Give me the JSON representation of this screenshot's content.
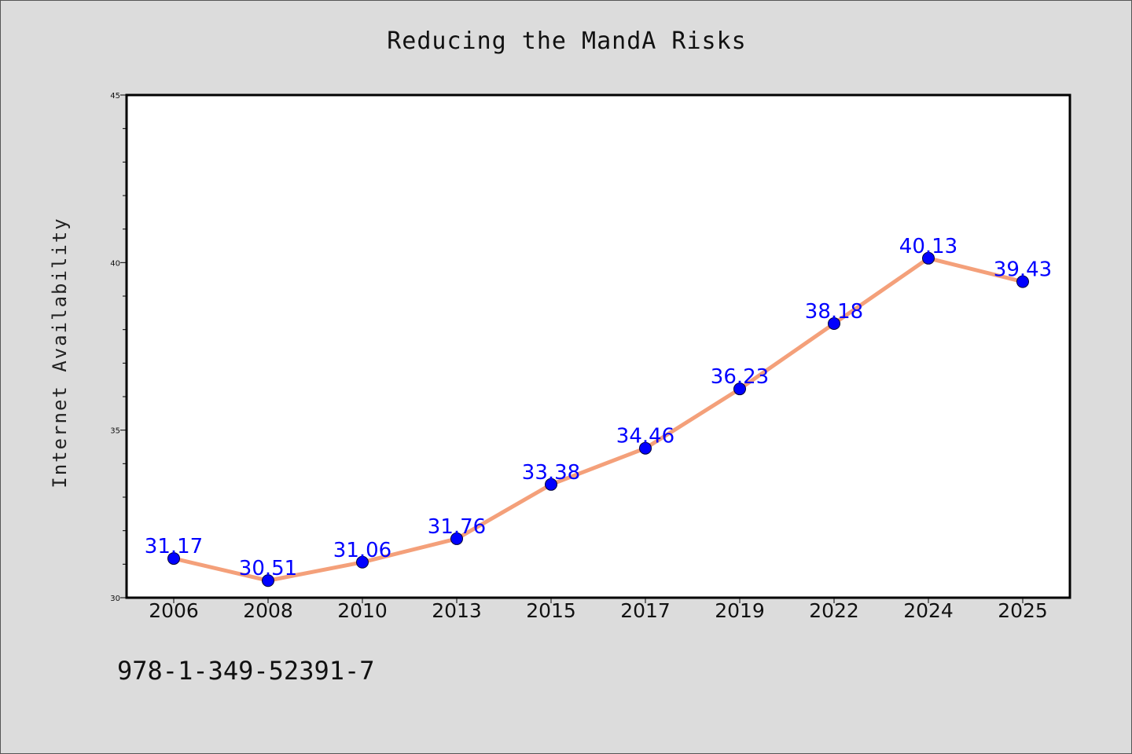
{
  "title": "Reducing the MandA Risks",
  "footnote": "978-1-349-52391-7",
  "chart_data": {
    "type": "line",
    "title": "Reducing the MandA Risks",
    "xlabel": "",
    "ylabel": "Internet Availability",
    "categories": [
      "2006",
      "2008",
      "2010",
      "2013",
      "2015",
      "2017",
      "2019",
      "2022",
      "2024",
      "2025"
    ],
    "series": [
      {
        "values": [
          31.17,
          30.51,
          31.06,
          31.76,
          33.38,
          34.46,
          36.23,
          38.18,
          40.13,
          39.43
        ]
      }
    ],
    "data_labels": [
      "31.17",
      "30.51",
      "31.06",
      "31.76",
      "33.38",
      "34.46",
      "36.23",
      "38.18",
      "40.13",
      "39.43"
    ],
    "ylim": [
      30,
      45
    ],
    "y_ticks": [
      "30",
      "35",
      "40",
      "45"
    ],
    "grid": false,
    "legend": "none",
    "colors": {
      "line": "#f4a07a",
      "marker": "#0000ff",
      "label": "#0000ff"
    }
  }
}
